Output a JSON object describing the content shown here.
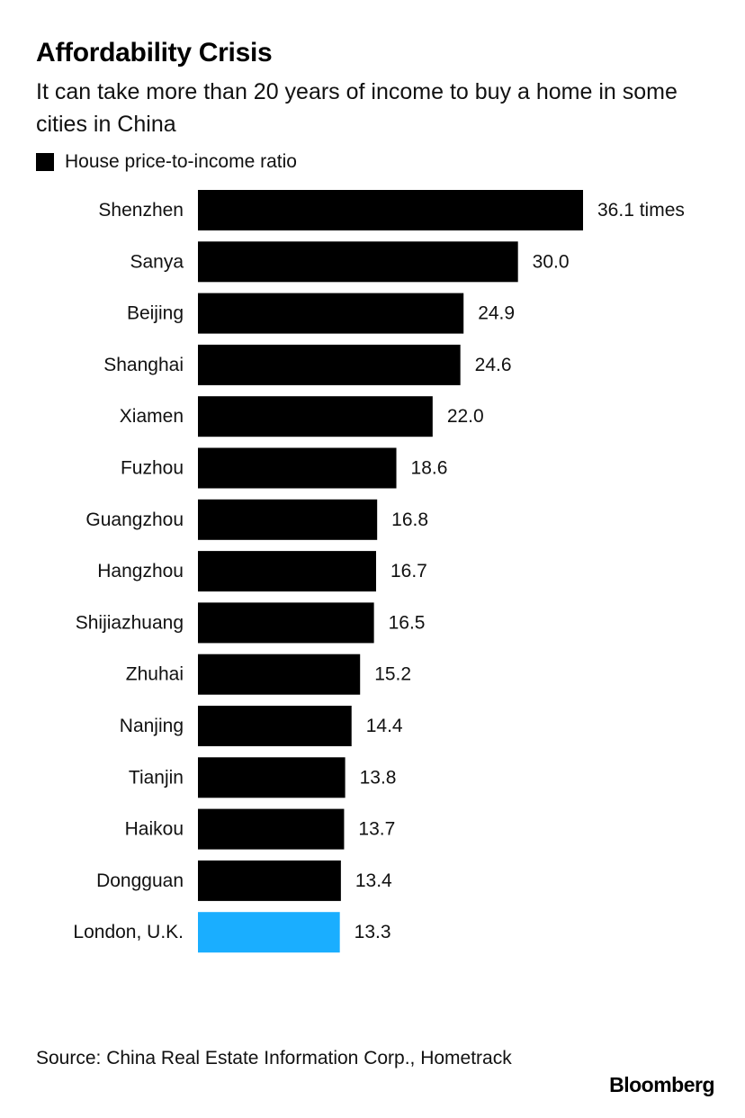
{
  "header": {
    "title": "Affordability Crisis",
    "subtitle": "It can take more than 20 years of income to buy a home in some cities in China"
  },
  "legend": {
    "label": "House price-to-income ratio",
    "color": "#000000"
  },
  "chart_data": {
    "type": "bar",
    "orientation": "horizontal",
    "title": "Affordability Crisis",
    "subtitle": "It can take more than 20 years of income to buy a home in some cities in China",
    "categories": [
      "Shenzhen",
      "Sanya",
      "Beijing",
      "Shanghai",
      "Xiamen",
      "Fuzhou",
      "Guangzhou",
      "Hangzhou",
      "Shijiazhuang",
      "Zhuhai",
      "Nanjing",
      "Tianjin",
      "Haikou",
      "Dongguan",
      "London, U.K."
    ],
    "series": [
      {
        "name": "House price-to-income ratio",
        "values": [
          36.1,
          30.0,
          24.9,
          24.6,
          22.0,
          18.6,
          16.8,
          16.7,
          16.5,
          15.2,
          14.4,
          13.8,
          13.7,
          13.4,
          13.3
        ]
      }
    ],
    "value_labels": [
      "36.1 times",
      "30.0",
      "24.9",
      "24.6",
      "22.0",
      "18.6",
      "16.8",
      "16.7",
      "16.5",
      "15.2",
      "14.4",
      "13.8",
      "13.7",
      "13.4",
      "13.3"
    ],
    "bar_colors": [
      "#000000",
      "#000000",
      "#000000",
      "#000000",
      "#000000",
      "#000000",
      "#000000",
      "#000000",
      "#000000",
      "#000000",
      "#000000",
      "#000000",
      "#000000",
      "#000000",
      "#1aaeff"
    ],
    "xlim": [
      0,
      36.1
    ],
    "grid": false,
    "legend_position": "top-left"
  },
  "footer": {
    "source": "Source: China Real Estate Information Corp., Hometrack",
    "brand": "Bloomberg"
  }
}
